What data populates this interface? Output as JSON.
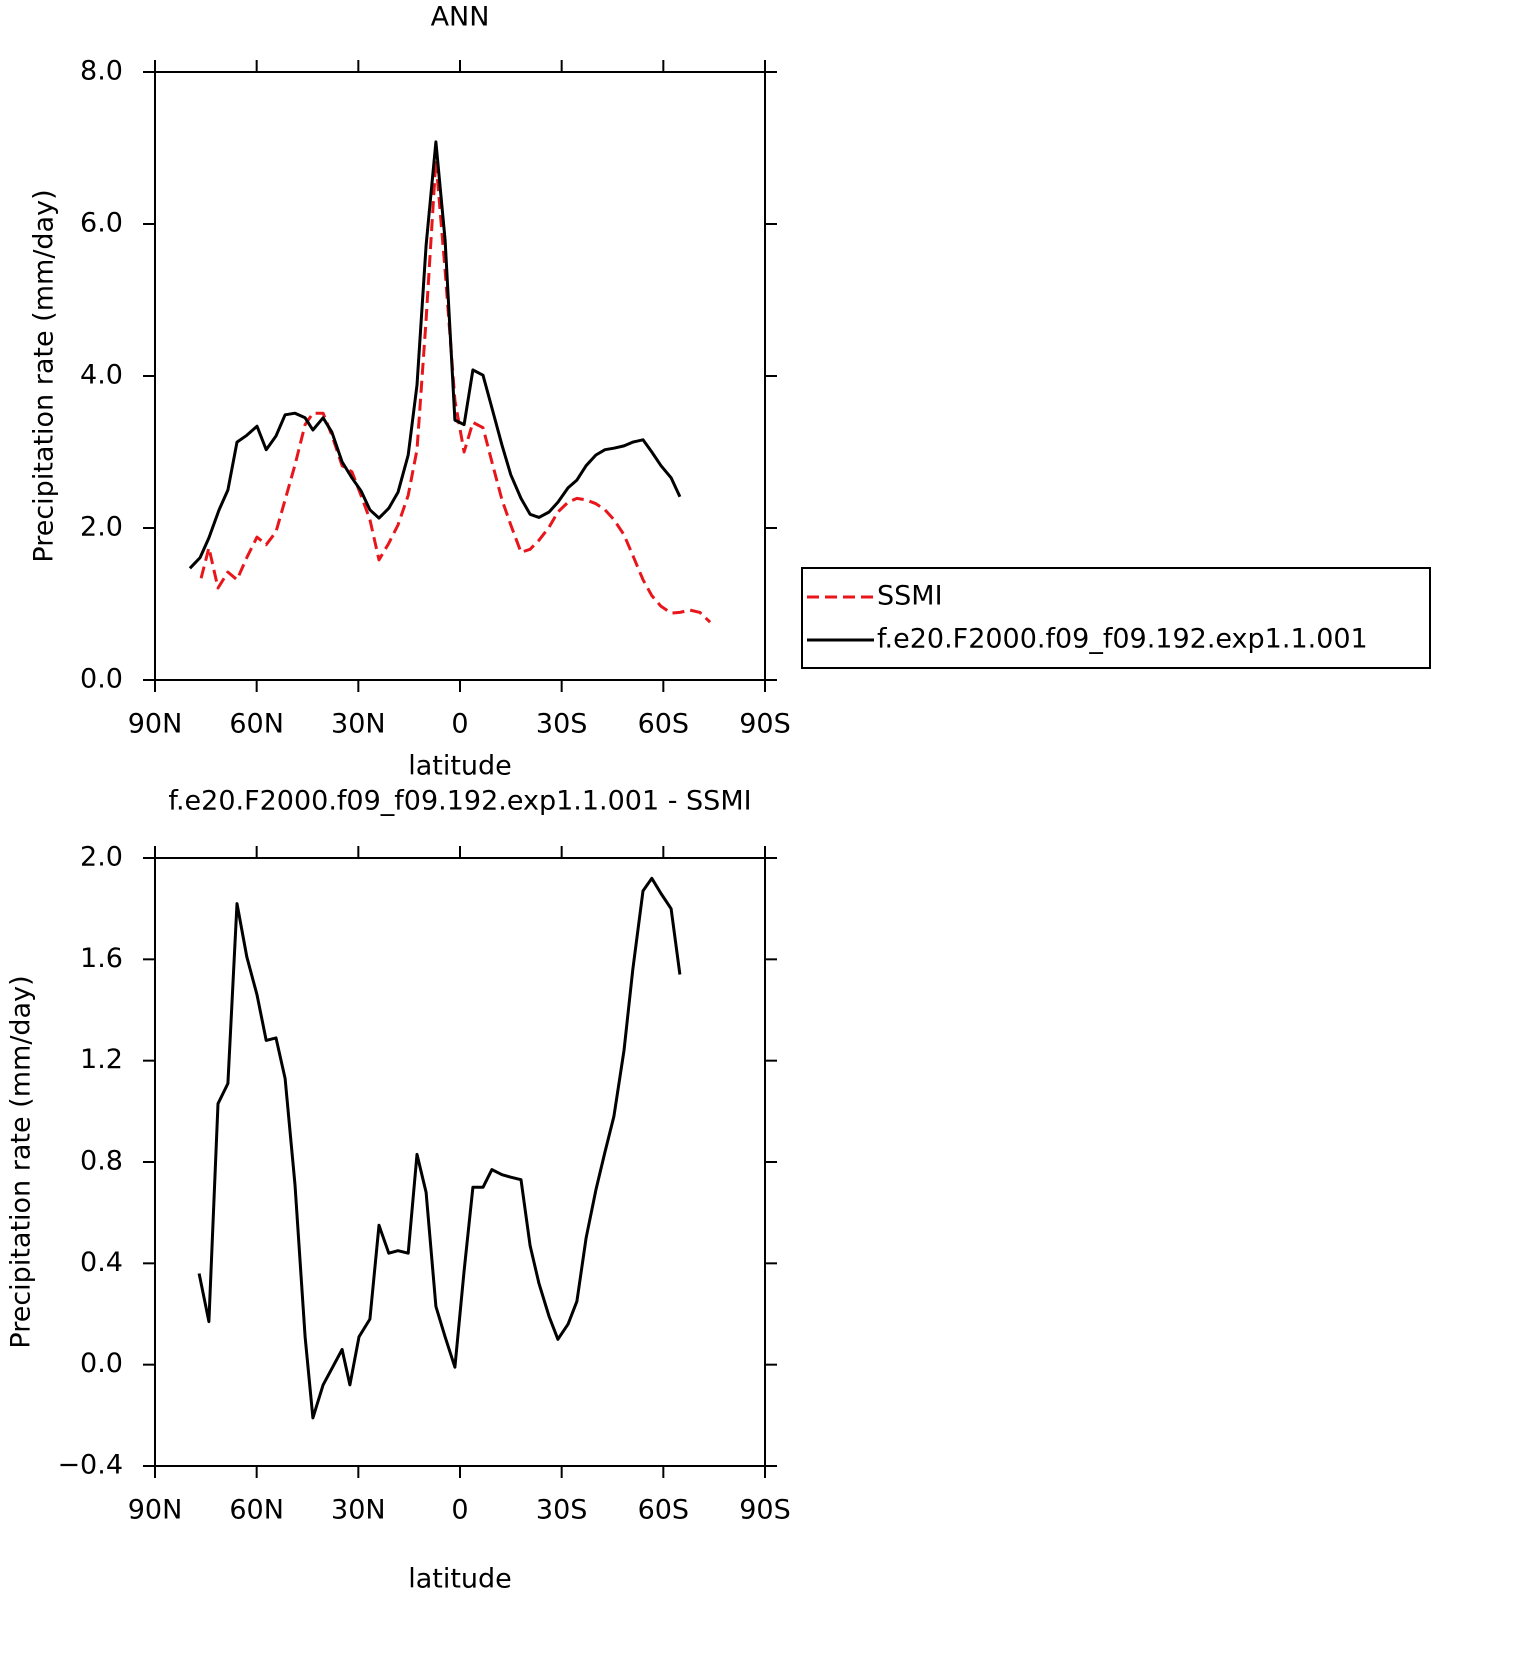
{
  "chart_data": [
    {
      "type": "line",
      "title": "ANN",
      "xlabel": "latitude",
      "ylabel": "Precipitation rate (mm/day)",
      "xlim": [
        90,
        -90
      ],
      "xticks": [
        {
          "value": 90,
          "label": "90N"
        },
        {
          "value": 60,
          "label": "60N"
        },
        {
          "value": 30,
          "label": "30N"
        },
        0,
        {
          "value": -30,
          "label": "30S"
        },
        {
          "value": -60,
          "label": "60S"
        },
        {
          "value": -90,
          "label": "90S"
        }
      ],
      "ylim": [
        0,
        8
      ],
      "yticks": [
        {
          "value": 0,
          "label": "0.0"
        },
        {
          "value": 2,
          "label": "2.0"
        },
        {
          "value": 4,
          "label": "4.0"
        },
        {
          "value": 6,
          "label": "6.0"
        },
        {
          "value": 8,
          "label": "8.0"
        }
      ],
      "legend": "right",
      "series": [
        {
          "name": "SSMI",
          "color": "#e8161b",
          "linestyle": "dashed",
          "x": [
            76.4,
            74.1,
            71.4,
            68.5,
            65.8,
            62.9,
            59.9,
            57.2,
            54.3,
            51.6,
            48.7,
            45.7,
            43.4,
            40.4,
            37.8,
            34.8,
            31.9,
            29.2,
            26.6,
            23.9,
            21.0,
            18.3,
            15.3,
            12.7,
            10.0,
            7.1,
            4.4,
            1.5,
            -1.2,
            -3.8,
            -6.8,
            -9.4,
            -12.4,
            -15.0,
            -18.0,
            -20.7,
            -23.3,
            -26.3,
            -28.9,
            -31.9,
            -34.5,
            -37.2,
            -40.1,
            -42.8,
            -45.4,
            -48.4,
            -51.0,
            -54.0,
            -56.6,
            -59.3,
            -62.3,
            -64.9,
            -67.9,
            -70.8,
            -73.8
          ],
          "values": [
            1.34,
            1.74,
            1.21,
            1.42,
            1.32,
            1.61,
            1.88,
            1.78,
            1.95,
            2.37,
            2.83,
            3.36,
            3.51,
            3.51,
            3.22,
            2.82,
            2.74,
            2.43,
            2.11,
            1.58,
            1.8,
            2.04,
            2.43,
            3.03,
            4.74,
            6.84,
            5.39,
            3.68,
            3.0,
            3.39,
            3.32,
            2.87,
            2.37,
            2.04,
            1.68,
            1.72,
            1.84,
            2.01,
            2.21,
            2.34,
            2.39,
            2.37,
            2.32,
            2.24,
            2.11,
            1.91,
            1.64,
            1.32,
            1.11,
            0.97,
            0.88,
            0.89,
            0.92,
            0.89,
            0.76
          ]
        },
        {
          "name": "f.e20.F2000.f09_f09.192.exp1.1.001",
          "color": "#000000",
          "linestyle": "solid",
          "x": [
            79.7,
            76.7,
            74.1,
            71.1,
            68.5,
            65.8,
            62.9,
            59.9,
            57.2,
            54.3,
            51.6,
            48.7,
            45.7,
            43.4,
            40.4,
            37.8,
            34.8,
            31.9,
            29.2,
            26.6,
            23.9,
            21.0,
            18.3,
            15.3,
            12.7,
            10.0,
            7.1,
            4.4,
            1.5,
            -1.2,
            -3.8,
            -6.8,
            -9.4,
            -12.4,
            -15.0,
            -18.0,
            -20.7,
            -23.3,
            -26.3,
            -28.9,
            -31.9,
            -34.5,
            -37.2,
            -40.1,
            -42.8,
            -45.4,
            -48.4,
            -51.0,
            -54.0,
            -56.6,
            -59.3,
            -62.3,
            -64.9
          ],
          "values": [
            1.47,
            1.61,
            1.87,
            2.24,
            2.5,
            3.13,
            3.22,
            3.34,
            3.03,
            3.21,
            3.49,
            3.51,
            3.45,
            3.29,
            3.45,
            3.26,
            2.87,
            2.66,
            2.49,
            2.24,
            2.13,
            2.26,
            2.47,
            2.96,
            3.88,
            5.72,
            7.08,
            5.79,
            3.42,
            3.36,
            4.08,
            4.01,
            3.58,
            3.09,
            2.7,
            2.39,
            2.18,
            2.14,
            2.21,
            2.34,
            2.53,
            2.63,
            2.82,
            2.96,
            3.03,
            3.05,
            3.08,
            3.13,
            3.16,
            3.0,
            2.82,
            2.66,
            2.41
          ]
        }
      ]
    },
    {
      "type": "line",
      "title": "f.e20.F2000.f09_f09.192.exp1.1.001 - SSMI",
      "xlabel": "latitude",
      "ylabel": "Precipitation rate (mm/day)",
      "xlim": [
        90,
        -90
      ],
      "xticks": [
        {
          "value": 90,
          "label": "90N"
        },
        {
          "value": 60,
          "label": "60N"
        },
        {
          "value": 30,
          "label": "30N"
        },
        0,
        {
          "value": -30,
          "label": "30S"
        },
        {
          "value": -60,
          "label": "60S"
        },
        {
          "value": -90,
          "label": "90S"
        }
      ],
      "ylim": [
        -0.4,
        2.0
      ],
      "yticks": [
        {
          "value": -0.4,
          "label": "−0.4"
        },
        {
          "value": 0,
          "label": "0.0"
        },
        0.4,
        0.8,
        1.2,
        1.6,
        {
          "value": 2.0,
          "label": "2.0"
        }
      ],
      "series": [
        {
          "color": "#000000",
          "linestyle": "solid",
          "x": [
            77.0,
            74.1,
            71.4,
            68.5,
            65.8,
            62.9,
            59.9,
            57.2,
            54.3,
            51.6,
            48.7,
            45.7,
            43.4,
            40.4,
            34.8,
            32.5,
            29.8,
            26.6,
            23.9,
            21.0,
            18.3,
            15.3,
            12.7,
            10.0,
            7.1,
            4.4,
            1.5,
            -1.2,
            -3.8,
            -6.8,
            -9.4,
            -12.4,
            -15.0,
            -18.0,
            -20.7,
            -23.3,
            -26.3,
            -28.9,
            -31.9,
            -34.5,
            -37.2,
            -40.1,
            -42.8,
            -45.4,
            -48.4,
            -51.0,
            -54.0,
            -56.6,
            -59.3,
            -62.3,
            -64.9
          ],
          "values": [
            0.36,
            0.17,
            1.03,
            1.11,
            1.82,
            1.61,
            1.46,
            1.28,
            1.29,
            1.13,
            0.71,
            0.11,
            -0.21,
            -0.08,
            0.06,
            -0.08,
            0.11,
            0.18,
            0.55,
            0.44,
            0.45,
            0.44,
            0.83,
            0.68,
            0.23,
            0.11,
            -0.01,
            0.37,
            0.7,
            0.7,
            0.77,
            0.75,
            0.74,
            0.73,
            0.47,
            0.32,
            0.19,
            0.1,
            0.16,
            0.25,
            0.5,
            0.69,
            0.84,
            0.98,
            1.24,
            1.56,
            1.87,
            1.92,
            1.86,
            1.8,
            1.54
          ]
        }
      ]
    }
  ]
}
